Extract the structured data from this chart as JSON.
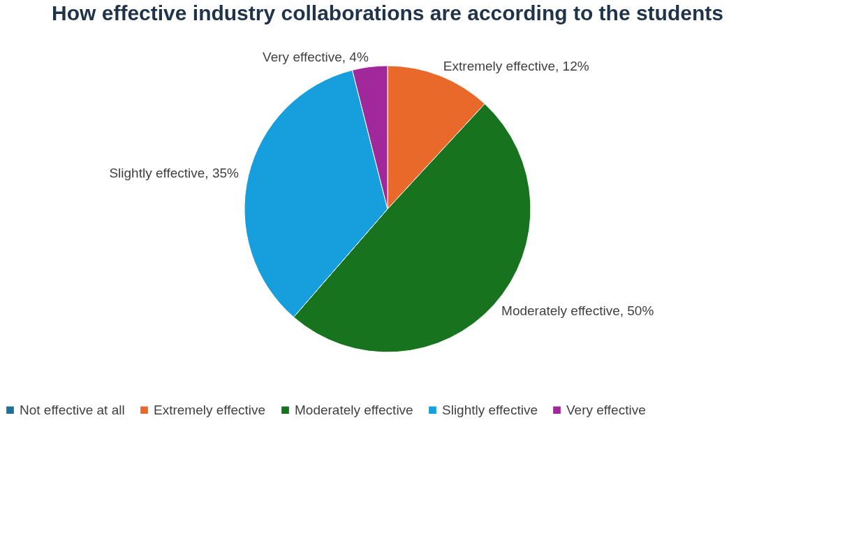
{
  "chart_data": {
    "type": "pie",
    "title": "How effective industry collaborations are according to the students",
    "categories": [
      "Not effective at all",
      "Extremely effective",
      "Moderately effective",
      "Slightly effective",
      "Very effective"
    ],
    "values": [
      0,
      12,
      50,
      35,
      4
    ],
    "colors": [
      "#1f6f9a",
      "#e8692a",
      "#18731f",
      "#169fdc",
      "#a0289a"
    ],
    "value_labels": [
      null,
      "Extremely effective, 12%",
      "Moderately effective, 50%",
      "Slightly effective, 35%",
      "Very effective, 4%"
    ],
    "legend": "bottom"
  }
}
